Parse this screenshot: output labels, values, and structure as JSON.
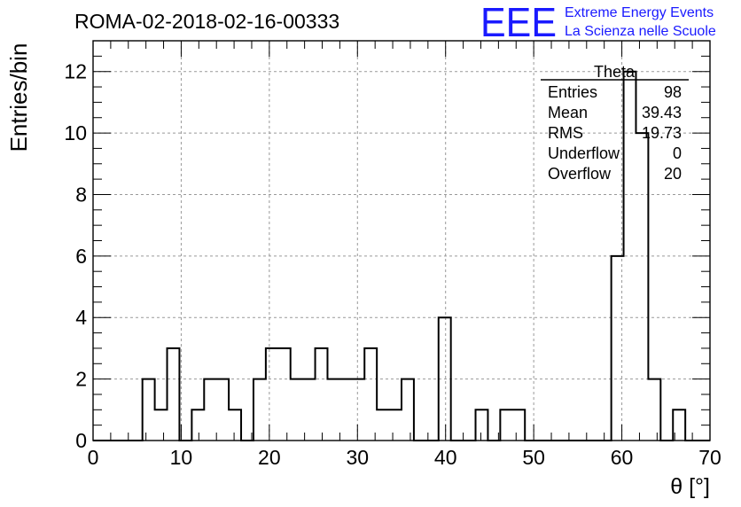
{
  "header": {
    "run_title": "ROMA-02-2018-02-16-00333",
    "logo_text": "EEE",
    "logo_line1": "Extreme Energy Events",
    "logo_line2": "La Scienza nelle Scuole",
    "logo_color": "#1a1aff"
  },
  "stats_box": {
    "title": "Theta",
    "rows": [
      {
        "label": "Entries",
        "value": "98"
      },
      {
        "label": "Mean",
        "value": "39.43"
      },
      {
        "label": "RMS",
        "value": "19.73"
      },
      {
        "label": "Underflow",
        "value": "0"
      },
      {
        "label": "Overflow",
        "value": "20"
      }
    ]
  },
  "chart_data": {
    "type": "bar",
    "histogram": true,
    "xlabel": "θ [°]",
    "ylabel": "Entries/bin",
    "xlim": [
      0,
      70
    ],
    "ylim": [
      0,
      13
    ],
    "bin_width": 1.4,
    "x_ticks": [
      0,
      10,
      20,
      30,
      40,
      50,
      60,
      70
    ],
    "y_ticks": [
      0,
      2,
      4,
      6,
      8,
      10,
      12
    ],
    "grid": true,
    "line_color": "#000000",
    "values": [
      0,
      0,
      0,
      0,
      2,
      1,
      3,
      0,
      1,
      2,
      2,
      1,
      0,
      2,
      3,
      3,
      2,
      2,
      3,
      2,
      2,
      2,
      3,
      1,
      1,
      2,
      0,
      0,
      4,
      0,
      0,
      1,
      0,
      1,
      1,
      0,
      0,
      0,
      0,
      0,
      0,
      0,
      6,
      12,
      10,
      2,
      0,
      1,
      0,
      0
    ]
  }
}
